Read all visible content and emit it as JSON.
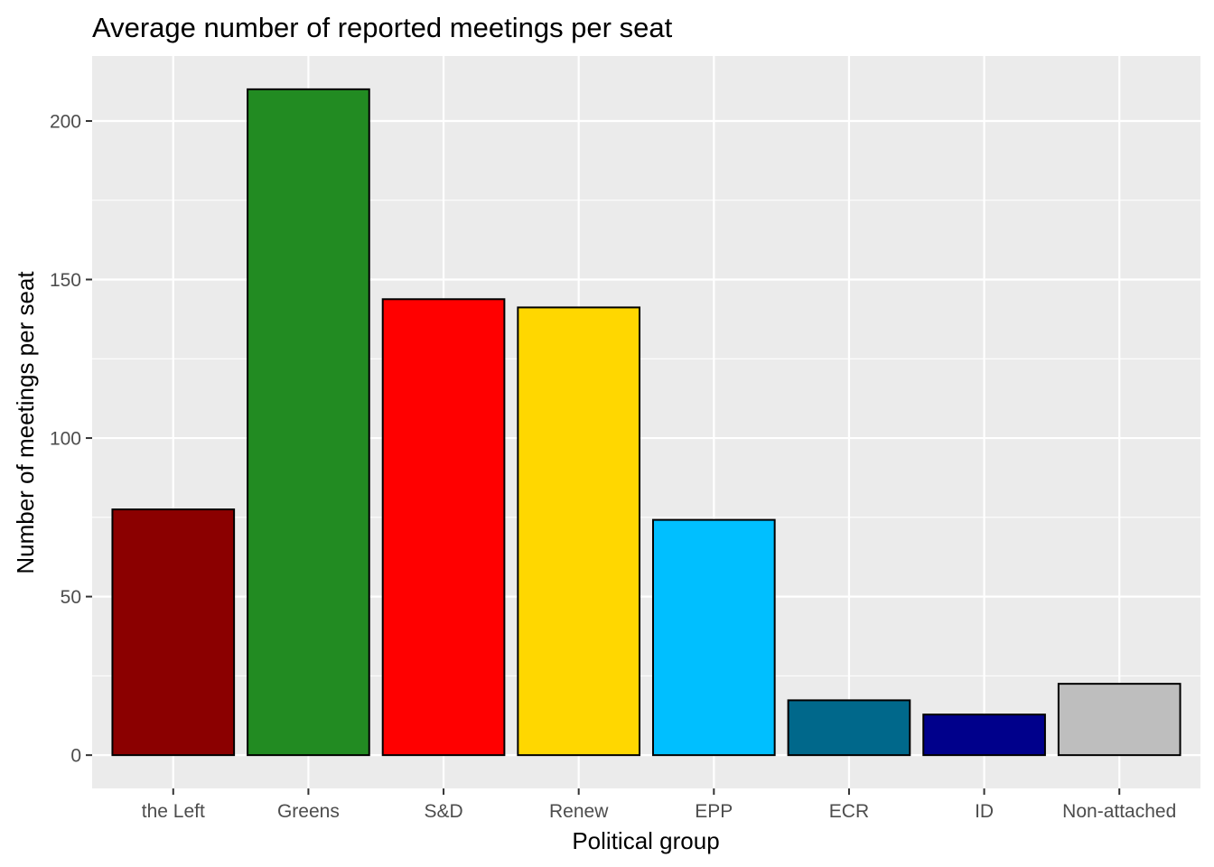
{
  "chart_data": {
    "type": "bar",
    "title": "Average number of reported meetings per seat",
    "xlabel": "Political group",
    "ylabel": "Number of meetings per seat",
    "categories": [
      "the Left",
      "Greens",
      "S&D",
      "Renew",
      "EPP",
      "ECR",
      "ID",
      "Non-attached"
    ],
    "values": [
      77.5,
      210,
      143.8,
      141.2,
      74.2,
      17.3,
      12.8,
      22.5
    ],
    "colors": [
      "#8B0000",
      "#228B22",
      "#FF0000",
      "#FFD700",
      "#00BFFF",
      "#00688B",
      "#00008B",
      "#BEBEBE"
    ],
    "ylim": [
      -10.5,
      220.5
    ],
    "yticks": [
      0,
      50,
      100,
      150,
      200
    ],
    "grid": true,
    "legend": "none",
    "panel_background": "#EBEBEB"
  }
}
